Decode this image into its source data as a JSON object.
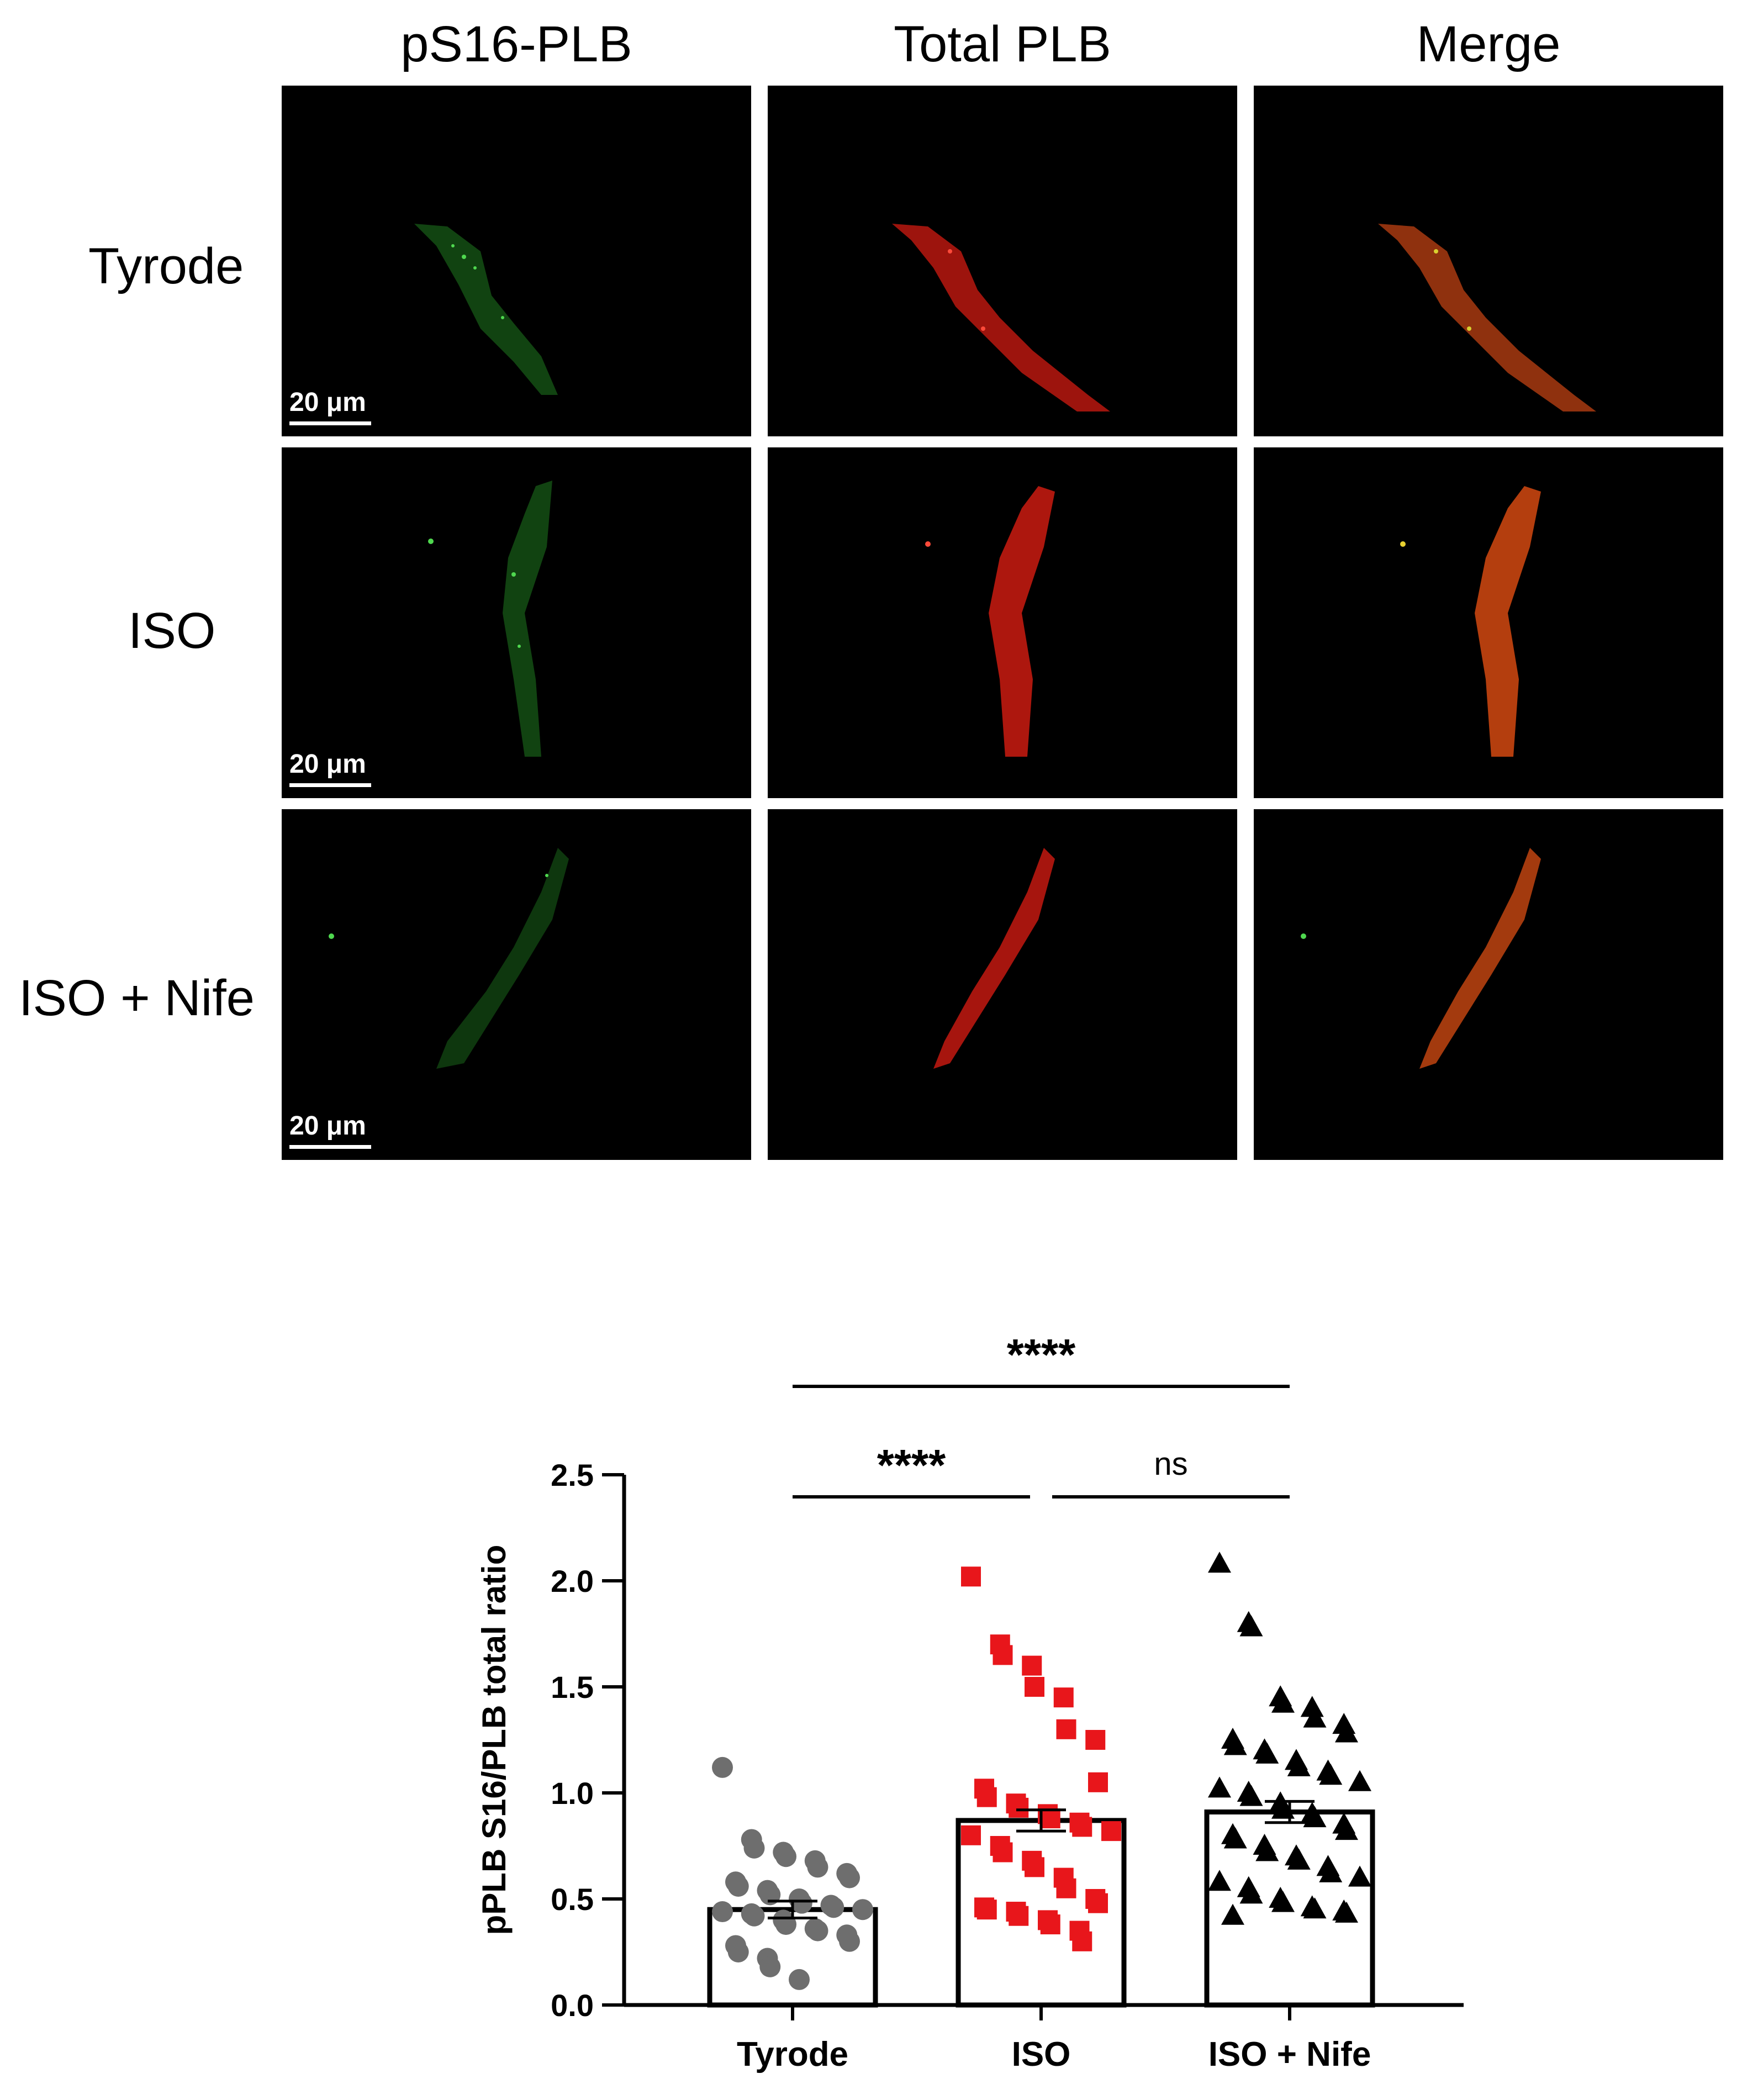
{
  "figure": {
    "columns": [
      "pS16-PLB",
      "Total PLB",
      "Merge"
    ],
    "rows": [
      "Tyrode",
      "ISO",
      "ISO + Nife"
    ],
    "scale_bar_label": "20 μm",
    "colors": {
      "green_channel": "#1f7a1f",
      "red_channel": "#d01c12",
      "merge_channel": "#c8450f"
    }
  },
  "chart_data": {
    "type": "bar",
    "title": "",
    "xlabel": "",
    "ylabel": "pPLB S16/PLB total ratio",
    "ylim": [
      0,
      2.5
    ],
    "yticks": [
      "0.0",
      "0.5",
      "1.0",
      "1.5",
      "2.0",
      "2.5"
    ],
    "categories": [
      "Tyrode",
      "ISO",
      "ISO + Nife"
    ],
    "values": [
      0.45,
      0.87,
      0.91
    ],
    "sem": [
      0.04,
      0.05,
      0.05
    ],
    "points": [
      [
        1.12,
        0.78,
        0.74,
        0.72,
        0.7,
        0.68,
        0.65,
        0.62,
        0.6,
        0.58,
        0.56,
        0.54,
        0.52,
        0.5,
        0.48,
        0.47,
        0.46,
        0.45,
        0.44,
        0.43,
        0.42,
        0.4,
        0.38,
        0.36,
        0.35,
        0.33,
        0.3,
        0.28,
        0.25,
        0.22,
        0.18,
        0.12
      ],
      [
        2.02,
        1.7,
        1.65,
        1.6,
        1.5,
        1.45,
        1.3,
        1.25,
        1.05,
        1.02,
        0.98,
        0.95,
        0.93,
        0.9,
        0.88,
        0.86,
        0.84,
        0.82,
        0.8,
        0.75,
        0.72,
        0.68,
        0.65,
        0.6,
        0.55,
        0.5,
        0.48,
        0.46,
        0.45,
        0.44,
        0.42,
        0.4,
        0.38,
        0.35,
        0.3
      ],
      [
        2.08,
        1.8,
        1.78,
        1.45,
        1.42,
        1.4,
        1.35,
        1.32,
        1.28,
        1.25,
        1.22,
        1.2,
        1.18,
        1.15,
        1.12,
        1.1,
        1.08,
        1.05,
        1.02,
        1.0,
        0.98,
        0.95,
        0.92,
        0.9,
        0.88,
        0.85,
        0.82,
        0.8,
        0.78,
        0.75,
        0.72,
        0.7,
        0.68,
        0.65,
        0.62,
        0.6,
        0.58,
        0.55,
        0.52,
        0.5,
        0.48,
        0.46,
        0.45,
        0.44,
        0.43,
        0.42
      ]
    ],
    "markers": [
      "circle",
      "square",
      "triangle"
    ],
    "marker_colors": [
      "#6e6e6e",
      "#e8161b",
      "#000000"
    ],
    "significance": [
      {
        "from": 0,
        "to": 2,
        "label": "****"
      },
      {
        "from": 0,
        "to": 1,
        "label": "****"
      },
      {
        "from": 1,
        "to": 2,
        "label": "ns"
      }
    ]
  }
}
